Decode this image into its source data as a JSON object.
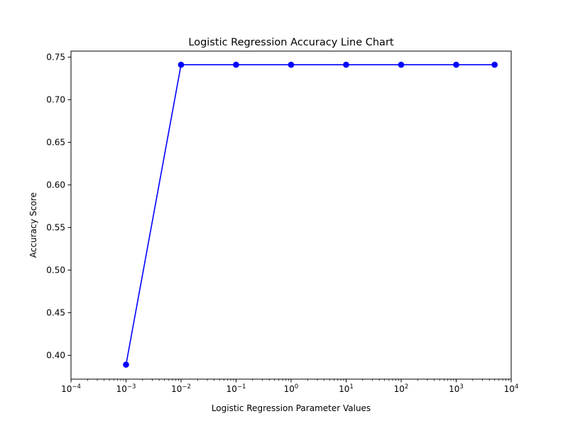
{
  "chart_data": {
    "type": "line",
    "title": "Logistic Regression Accuracy Line Chart",
    "xlabel": "Logistic Regression Parameter Values",
    "ylabel": "Accuracy Score",
    "xscale": "log",
    "xlim": [
      0.0001,
      10000
    ],
    "ylim": [
      0.372,
      0.757
    ],
    "grid": false,
    "x_ticks": [
      {
        "value": 0.0001,
        "base": "10",
        "exp": "−4"
      },
      {
        "value": 0.001,
        "base": "10",
        "exp": "−3"
      },
      {
        "value": 0.01,
        "base": "10",
        "exp": "−2"
      },
      {
        "value": 0.1,
        "base": "10",
        "exp": "−1"
      },
      {
        "value": 1,
        "base": "10",
        "exp": "0"
      },
      {
        "value": 10,
        "base": "10",
        "exp": "1"
      },
      {
        "value": 100,
        "base": "10",
        "exp": "2"
      },
      {
        "value": 1000,
        "base": "10",
        "exp": "3"
      },
      {
        "value": 10000,
        "base": "10",
        "exp": "4"
      }
    ],
    "y_ticks": [
      {
        "value": 0.4,
        "label": "0.40"
      },
      {
        "value": 0.45,
        "label": "0.45"
      },
      {
        "value": 0.5,
        "label": "0.50"
      },
      {
        "value": 0.55,
        "label": "0.55"
      },
      {
        "value": 0.6,
        "label": "0.60"
      },
      {
        "value": 0.65,
        "label": "0.65"
      },
      {
        "value": 0.7,
        "label": "0.70"
      },
      {
        "value": 0.75,
        "label": "0.75"
      }
    ],
    "series": [
      {
        "color": "#0000ff",
        "marker": "circle",
        "x": [
          0.001,
          0.01,
          0.1,
          1,
          10,
          100,
          1000,
          5000
        ],
        "y": [
          0.389,
          0.741,
          0.741,
          0.741,
          0.741,
          0.741,
          0.741,
          0.741
        ]
      }
    ]
  }
}
